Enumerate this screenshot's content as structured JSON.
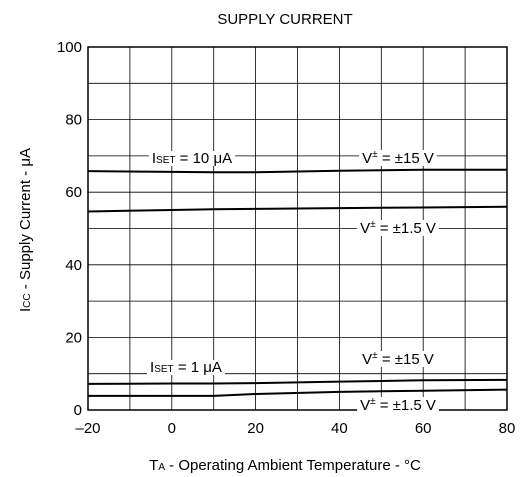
{
  "chart_data": {
    "type": "line",
    "title": "SUPPLY CURRENT",
    "x_label": [
      "T",
      "A",
      " - Operating Ambient Temperature - °C"
    ],
    "y_label": [
      "I",
      "CC",
      " - Supply Current - μA"
    ],
    "x": [
      -20,
      0,
      10,
      20,
      40,
      60,
      80
    ],
    "series": [
      {
        "color": "#000000",
        "values": [
          65.8,
          65.6,
          65.5,
          65.5,
          65.9,
          66.2,
          66.2
        ]
      },
      {
        "color": "#000000",
        "values": [
          54.7,
          55.1,
          55.3,
          55.4,
          55.6,
          55.8,
          56.0
        ]
      },
      {
        "color": "#000000",
        "values": [
          7.2,
          7.3,
          7.3,
          7.4,
          7.8,
          8.2,
          8.3
        ]
      },
      {
        "color": "#000000",
        "values": [
          3.9,
          3.9,
          3.9,
          4.4,
          5.0,
          5.3,
          5.6
        ]
      }
    ],
    "annotations": [
      {
        "style": "sub",
        "parts": [
          "I",
          "SET",
          " = 10 μA"
        ]
      },
      {
        "style": "sup",
        "parts": [
          "V",
          "±",
          " = ±15 V"
        ]
      },
      {
        "style": "sup",
        "parts": [
          "V",
          "±",
          " = ±1.5 V"
        ]
      },
      {
        "style": "sub",
        "parts": [
          "I",
          "SET",
          " = 1 μA"
        ]
      },
      {
        "style": "sup",
        "parts": [
          "V",
          "±",
          " = ±15 V"
        ]
      },
      {
        "style": "sup",
        "parts": [
          "V",
          "±",
          " = ±1.5 V"
        ]
      }
    ],
    "xlim": [
      -20,
      80
    ],
    "xticks": [
      {
        "value": -20,
        "label": "–20"
      },
      0,
      20,
      40,
      60,
      80
    ],
    "xminor": [
      -10,
      10,
      30,
      50,
      70
    ],
    "ylim": [
      0,
      100
    ],
    "yticks": [
      0,
      20,
      40,
      60,
      80,
      100
    ],
    "yminor": [
      10,
      30,
      50,
      70,
      90
    ],
    "grid": true
  }
}
